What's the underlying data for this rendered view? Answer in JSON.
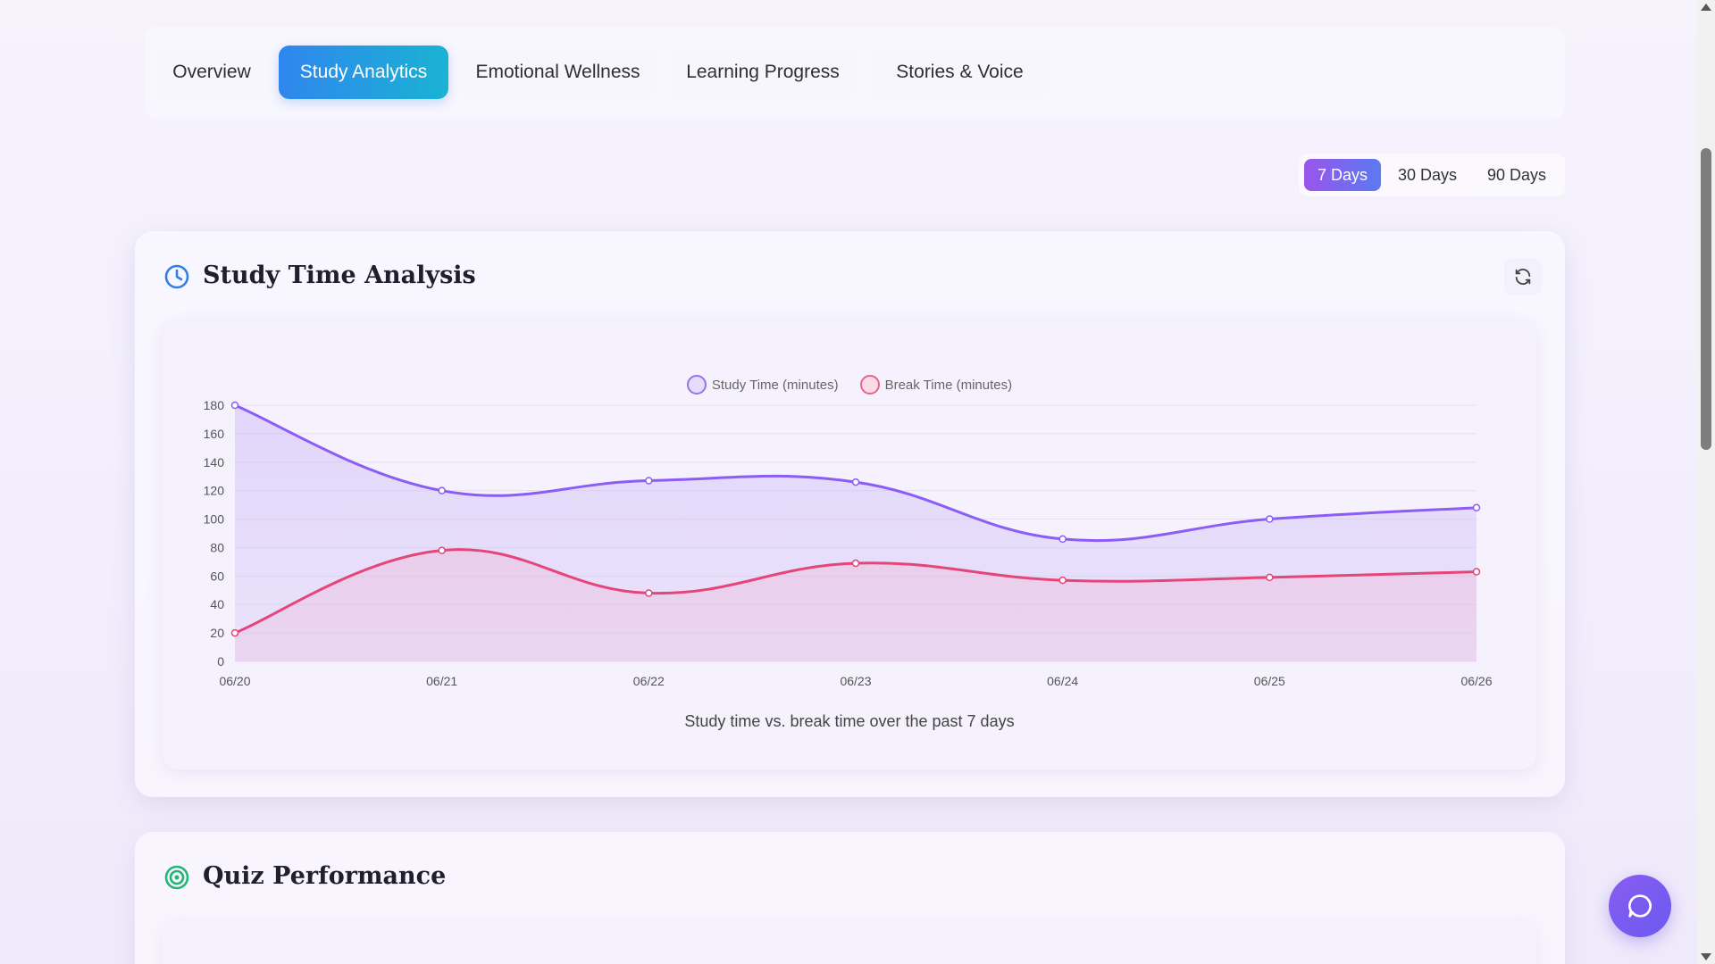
{
  "tabs": [
    {
      "label": "Overview",
      "active": false
    },
    {
      "label": "Study Analytics",
      "active": true
    },
    {
      "label": "Emotional Wellness",
      "active": false
    },
    {
      "label": "Learning Progress",
      "active": false
    },
    {
      "label": "Stories & Voice",
      "active": false
    }
  ],
  "range": {
    "options": [
      "7 Days",
      "30 Days",
      "90 Days"
    ],
    "selected": "7 Days"
  },
  "study_card": {
    "title": "Study Time Analysis",
    "caption": "Study time vs. break time over the past 7 days",
    "icon": "clock-icon",
    "refresh_icon": "refresh-icon"
  },
  "quiz_card": {
    "title": "Quiz Performance",
    "icon": "target-icon"
  },
  "colors": {
    "accent_tab": "#2f86ee",
    "study": "#8b5cf6",
    "break": "#e54579"
  },
  "chart_data": {
    "type": "line",
    "x": [
      "06/20",
      "06/21",
      "06/22",
      "06/23",
      "06/24",
      "06/25",
      "06/26"
    ],
    "series": [
      {
        "name": "Study Time (minutes)",
        "values": [
          180,
          120,
          127,
          126,
          86,
          100,
          108
        ]
      },
      {
        "name": "Break Time (minutes)",
        "values": [
          20,
          78,
          48,
          69,
          57,
          59,
          63
        ]
      }
    ],
    "ylim": [
      0,
      180
    ],
    "yticks": [
      0,
      20,
      40,
      60,
      80,
      100,
      120,
      140,
      160,
      180
    ],
    "grid": true,
    "legend": "top-center",
    "title": "",
    "xlabel": "",
    "ylabel": ""
  }
}
